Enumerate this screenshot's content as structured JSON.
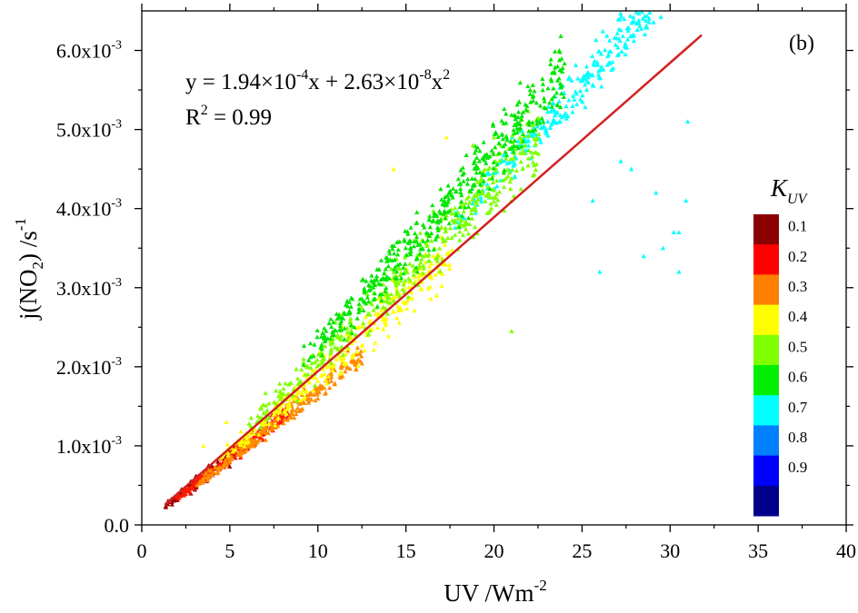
{
  "panel_label": "(b)",
  "equation": {
    "prefix": "y = 1.94×10",
    "exp1": "-4",
    "mid": "x + 2.63×10",
    "exp2": "-8",
    "suffix": "x",
    "exp3": "2"
  },
  "r_squared": {
    "prefix": "R",
    "exp": "2",
    "suffix": " = 0.99"
  },
  "chart_data": {
    "type": "scatter",
    "xlabel": {
      "base": "UV /Wm",
      "exp": "-2"
    },
    "ylabel": {
      "p1": "j(NO",
      "sub": "2",
      "p2": ") /s",
      "sup": "-1"
    },
    "xlim": [
      0,
      40
    ],
    "ylim": [
      0,
      0.0065
    ],
    "x_ticks": [
      {
        "value": 0,
        "label": "0"
      },
      {
        "value": 5,
        "label": "5"
      },
      {
        "value": 10,
        "label": "10"
      },
      {
        "value": 15,
        "label": "15"
      },
      {
        "value": 20,
        "label": "20"
      },
      {
        "value": 25,
        "label": "25"
      },
      {
        "value": 30,
        "label": "30"
      },
      {
        "value": 35,
        "label": "35"
      },
      {
        "value": 40,
        "label": "40"
      }
    ],
    "y_ticks": [
      {
        "value": 0.0,
        "base": "0.0",
        "exp": ""
      },
      {
        "value": 0.001,
        "base": "1.0x10",
        "exp": "-3"
      },
      {
        "value": 0.002,
        "base": "2.0x10",
        "exp": "-3"
      },
      {
        "value": 0.003,
        "base": "3.0x10",
        "exp": "-3"
      },
      {
        "value": 0.004,
        "base": "4.0x10",
        "exp": "-3"
      },
      {
        "value": 0.005,
        "base": "5.0x10",
        "exp": "-3"
      },
      {
        "value": 0.006,
        "base": "6.0x10",
        "exp": "-3"
      }
    ],
    "fit": {
      "a": 0.000194,
      "b": 2.63e-08,
      "x_range": [
        1.3,
        31.8
      ],
      "color": "#d42020"
    },
    "clusters": [
      {
        "k": 0.1,
        "count": 90,
        "x_range": [
          1.2,
          5.5
        ],
        "ratio": 0.172,
        "spread": 0.1
      },
      {
        "k": 0.2,
        "count": 170,
        "x_range": [
          1.8,
          8.5
        ],
        "ratio": 0.168,
        "spread": 0.08
      },
      {
        "k": 0.3,
        "count": 240,
        "x_range": [
          3.0,
          12.5
        ],
        "ratio": 0.165,
        "spread": 0.08
      },
      {
        "k": 0.4,
        "count": 300,
        "x_range": [
          4.5,
          17.5
        ],
        "ratio": 0.183,
        "spread": 0.1
      },
      {
        "k": 0.5,
        "count": 420,
        "x_range": [
          6.0,
          22.5
        ],
        "ratio": 0.2,
        "spread": 0.1
      },
      {
        "k": 0.6,
        "count": 460,
        "x_range": [
          9.0,
          24.0
        ],
        "ratio": 0.218,
        "spread": 0.08
      },
      {
        "k": 0.7,
        "count": 380,
        "x_range": [
          17.5,
          32.0
        ],
        "ratio": 0.203,
        "spread": 0.05
      }
    ],
    "outliers": [
      {
        "x": 26.0,
        "y": 0.0032,
        "k": 0.7
      },
      {
        "x": 28.5,
        "y": 0.0034,
        "k": 0.7
      },
      {
        "x": 29.6,
        "y": 0.0035,
        "k": 0.7
      },
      {
        "x": 30.2,
        "y": 0.0037,
        "k": 0.7
      },
      {
        "x": 30.5,
        "y": 0.0032,
        "k": 0.7
      },
      {
        "x": 30.9,
        "y": 0.0041,
        "k": 0.7
      },
      {
        "x": 31.0,
        "y": 0.0051,
        "k": 0.7
      },
      {
        "x": 30.5,
        "y": 0.0037,
        "k": 0.7
      },
      {
        "x": 27.8,
        "y": 0.0045,
        "k": 0.7
      },
      {
        "x": 27.2,
        "y": 0.0046,
        "k": 0.7
      },
      {
        "x": 29.2,
        "y": 0.0042,
        "k": 0.7
      },
      {
        "x": 25.6,
        "y": 0.0041,
        "k": 0.7
      },
      {
        "x": 14.3,
        "y": 0.0045,
        "k": 0.4
      },
      {
        "x": 17.3,
        "y": 0.0049,
        "k": 0.4
      },
      {
        "x": 18.8,
        "y": 0.0048,
        "k": 0.5
      },
      {
        "x": 20.0,
        "y": 0.0049,
        "k": 0.5
      },
      {
        "x": 21.0,
        "y": 0.00245,
        "k": 0.5
      },
      {
        "x": 4.8,
        "y": 0.0013,
        "k": 0.4
      },
      {
        "x": 3.5,
        "y": 0.001,
        "k": 0.4
      }
    ],
    "colorbar": {
      "title": "K",
      "title_sub": "UV",
      "colors": [
        "#8b0000",
        "#ff0000",
        "#ff7f00",
        "#ffff00",
        "#7fff00",
        "#00ee00",
        "#00ffff",
        "#007fff",
        "#0000ff",
        "#00008b"
      ],
      "labels": [
        "0.1",
        "0.2",
        "0.3",
        "0.4",
        "0.5",
        "0.6",
        "0.7",
        "0.8",
        "0.9"
      ]
    },
    "point_colors": {
      "0.1": "#a00000",
      "0.2": "#ff1a00",
      "0.3": "#ff8c00",
      "0.4": "#ffff00",
      "0.5": "#80ff00",
      "0.6": "#00e600",
      "0.7": "#00ffff"
    }
  }
}
